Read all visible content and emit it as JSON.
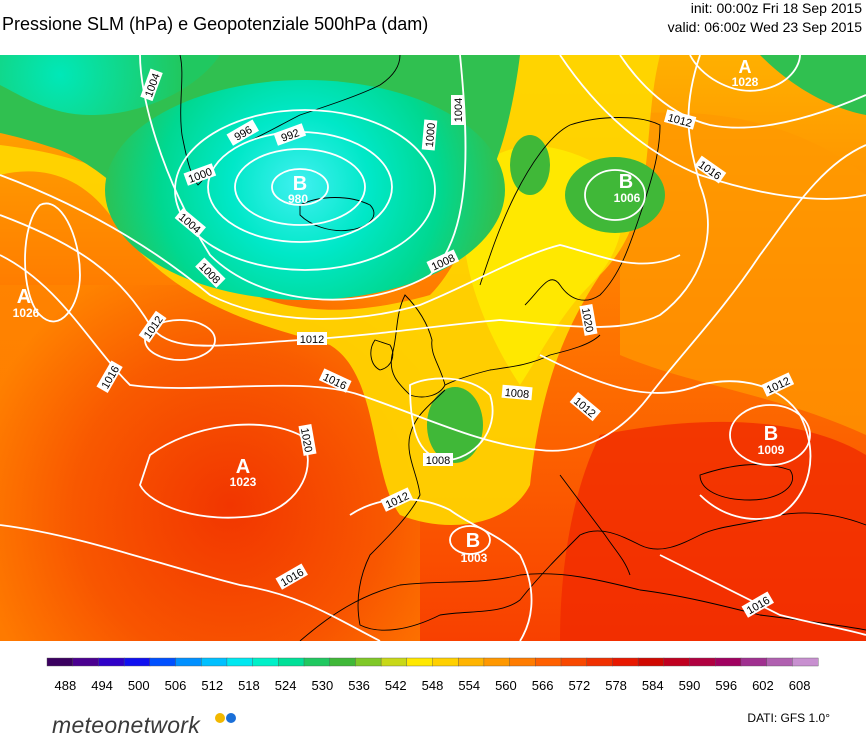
{
  "header": {
    "title": "Pressione SLM (hPa) e Geopotenziale 500hPa (dam)",
    "init": "init: 00:00z Fri 18 Sep 2015",
    "valid": "valid: 06:00z Wed 23 Sep 2015"
  },
  "colorbar": {
    "tick_labels": [
      "488",
      "494",
      "500",
      "506",
      "512",
      "518",
      "524",
      "530",
      "536",
      "542",
      "548",
      "554",
      "560",
      "566",
      "572",
      "578",
      "584",
      "590",
      "596",
      "602",
      "608"
    ],
    "range": [
      485,
      611
    ],
    "step": 3,
    "colors": [
      "#3b0060",
      "#4b0090",
      "#3000c8",
      "#1010f0",
      "#0050ff",
      "#0090ff",
      "#00c0ff",
      "#00e8f0",
      "#00f0c8",
      "#00e098",
      "#20c860",
      "#40b838",
      "#80c828",
      "#c8d818",
      "#ffe800",
      "#ffd000",
      "#ffb400",
      "#ff9800",
      "#ff7c00",
      "#ff6000",
      "#f84800",
      "#f03000",
      "#e81800",
      "#d00800",
      "#c00020",
      "#b00040",
      "#a00060",
      "#a03090",
      "#b060b0",
      "#c890d0"
    ]
  },
  "map": {
    "highs": [
      {
        "letter": "A",
        "value": "1028"
      },
      {
        "letter": "A",
        "value": "1026"
      },
      {
        "letter": "A",
        "value": "1023"
      }
    ],
    "lows": [
      {
        "letter": "B",
        "value": "980"
      },
      {
        "letter": "B",
        "value": "1006"
      },
      {
        "letter": "B",
        "value": "1009"
      },
      {
        "letter": "B",
        "value": "1003"
      }
    ],
    "isobar_labels": [
      "1004",
      "1004",
      "1000",
      "996",
      "992",
      "1000",
      "1004",
      "1008",
      "1008",
      "1012",
      "1012",
      "1016",
      "1016",
      "1020",
      "1016",
      "1012",
      "1008",
      "1008",
      "1012",
      "1016",
      "1012",
      "1012",
      "1016",
      "1020"
    ]
  },
  "footer": {
    "logo": "meteonetwork",
    "logo_colors": [
      "#f2b800",
      "#1a6fd8"
    ],
    "source": "DATI:  GFS  1.0°"
  }
}
